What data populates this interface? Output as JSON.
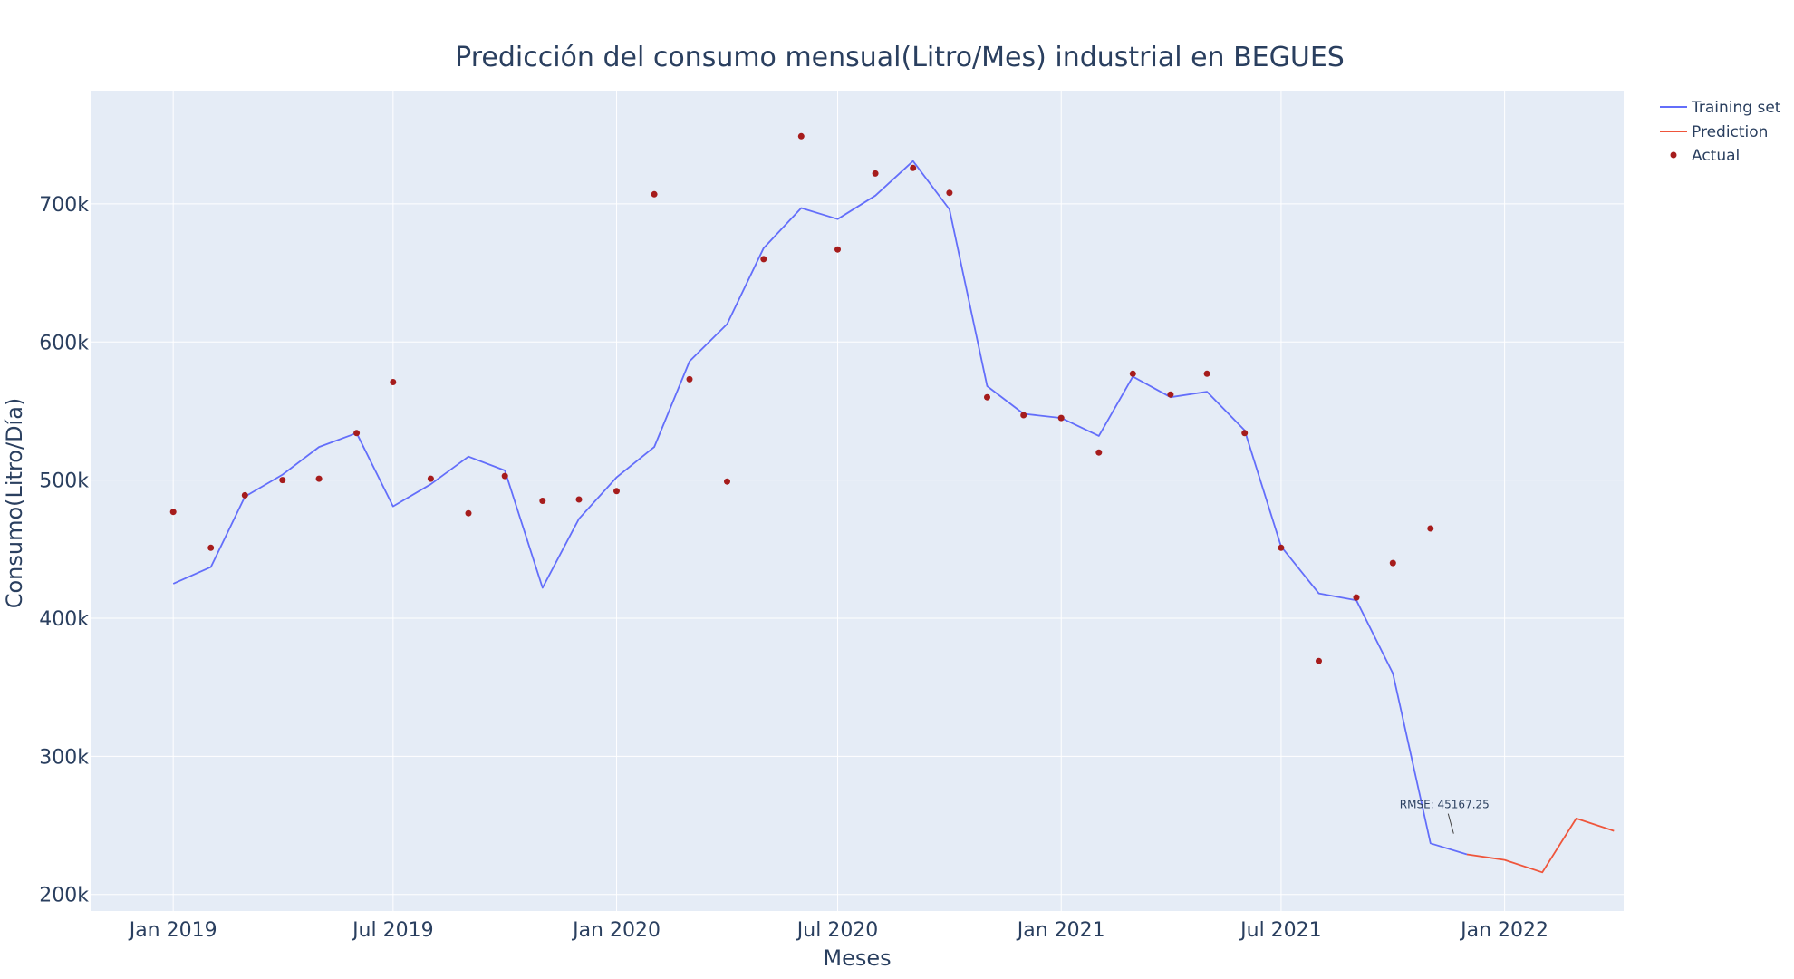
{
  "chart_data": {
    "type": "line",
    "title": "Predicción del consumo mensual(Litro/Mes) industrial en BEGUES",
    "xlabel": "Meses",
    "ylabel": "Consumo(Litro/Día)",
    "x_tick_labels": [
      "Jan 2019",
      "Jul 2019",
      "Jan 2020",
      "Jul 2020",
      "Jan 2021",
      "Jul 2021",
      "Jan 2022"
    ],
    "y_tick_labels": [
      "200k",
      "300k",
      "400k",
      "500k",
      "600k",
      "700k"
    ],
    "y_ticks": [
      200000,
      300000,
      400000,
      500000,
      600000,
      700000
    ],
    "ylim": [
      188000,
      782000
    ],
    "xlim": [
      "2018-10-25",
      "2022-04-09"
    ],
    "grid": true,
    "legend_position": "top-right",
    "colors": {
      "plot_bg": "#e5ecf6",
      "grid": "#ffffff",
      "training": "#636efa",
      "prediction": "#ef553b",
      "actual": "#a61c1c"
    },
    "annotation": {
      "text": "RMSE: 45167.25",
      "x": "2021-11-20",
      "y": 244000
    },
    "series": [
      {
        "name": "Training set",
        "mode": "line",
        "x": [
          "2019-01-01",
          "2019-02-01",
          "2019-03-01",
          "2019-04-01",
          "2019-05-01",
          "2019-06-01",
          "2019-07-01",
          "2019-08-01",
          "2019-09-01",
          "2019-10-01",
          "2019-11-01",
          "2019-12-01",
          "2020-01-01",
          "2020-02-01",
          "2020-03-01",
          "2020-04-01",
          "2020-05-01",
          "2020-06-01",
          "2020-07-01",
          "2020-08-01",
          "2020-09-01",
          "2020-10-01",
          "2020-11-01",
          "2020-12-01",
          "2021-01-01",
          "2021-02-01",
          "2021-03-01",
          "2021-04-01",
          "2021-05-01",
          "2021-06-01",
          "2021-07-01",
          "2021-08-01",
          "2021-09-01",
          "2021-10-01",
          "2021-11-01",
          "2021-12-01"
        ],
        "y": [
          425000,
          437000,
          488000,
          504000,
          524000,
          534000,
          481000,
          497000,
          517000,
          507000,
          422000,
          472000,
          502000,
          524000,
          586000,
          613000,
          668000,
          697000,
          689000,
          706000,
          731000,
          696000,
          568000,
          548000,
          545000,
          532000,
          575000,
          560000,
          564000,
          536000,
          452000,
          418000,
          413000,
          360000,
          237000,
          229000
        ]
      },
      {
        "name": "Prediction",
        "mode": "line",
        "x": [
          "2021-12-01",
          "2022-01-01",
          "2022-02-01",
          "2022-03-01",
          "2022-04-01"
        ],
        "y": [
          229000,
          225000,
          216000,
          255000,
          246000
        ]
      },
      {
        "name": "Actual",
        "mode": "markers",
        "x": [
          "2019-01-01",
          "2019-02-01",
          "2019-03-01",
          "2019-04-01",
          "2019-05-01",
          "2019-06-01",
          "2019-07-01",
          "2019-08-01",
          "2019-09-01",
          "2019-10-01",
          "2019-11-01",
          "2019-12-01",
          "2020-01-01",
          "2020-02-01",
          "2020-03-01",
          "2020-04-01",
          "2020-05-01",
          "2020-06-01",
          "2020-07-01",
          "2020-08-01",
          "2020-09-01",
          "2020-10-01",
          "2020-11-01",
          "2020-12-01",
          "2021-01-01",
          "2021-02-01",
          "2021-03-01",
          "2021-04-01",
          "2021-05-01",
          "2021-06-01",
          "2021-07-01",
          "2021-08-01",
          "2021-09-01",
          "2021-10-01",
          "2021-11-01"
        ],
        "y": [
          477000,
          451000,
          489000,
          500000,
          501000,
          534000,
          571000,
          501000,
          476000,
          503000,
          485000,
          486000,
          492000,
          707000,
          573000,
          499000,
          660000,
          749000,
          667000,
          722000,
          726000,
          708000,
          560000,
          547000,
          545000,
          520000,
          577000,
          562000,
          577000,
          534000,
          451000,
          369000,
          415000,
          440000,
          465000
        ]
      }
    ]
  }
}
